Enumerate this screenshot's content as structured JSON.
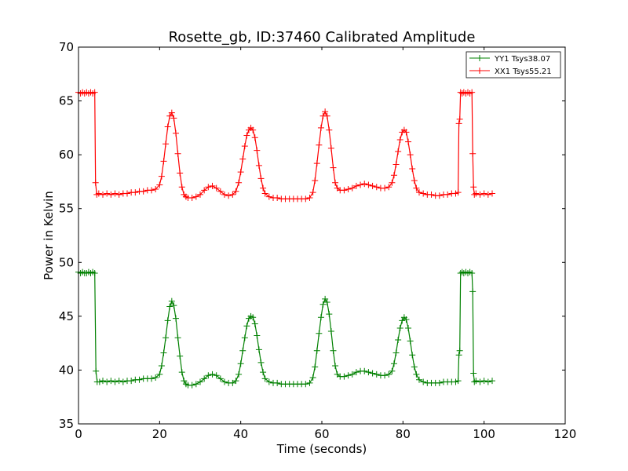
{
  "chart_data": {
    "type": "line",
    "title": "Rosette_gb, ID:37460 Calibrated Amplitude",
    "xlabel": "Time (seconds)",
    "ylabel": "Power in Kelvin",
    "xlim": [
      0,
      120
    ],
    "ylim": [
      35,
      70
    ],
    "xticks": [
      0,
      20,
      40,
      60,
      80,
      100,
      120
    ],
    "yticks": [
      35,
      40,
      45,
      50,
      55,
      60,
      65,
      70
    ],
    "grid": false,
    "legend_position": "top-right",
    "marker": "plus",
    "series": [
      {
        "name": "YY1 Tsys38.07",
        "color": "#008000",
        "points": [
          [
            0.0,
            49.1
          ],
          [
            0.5,
            49.0
          ],
          [
            1.0,
            49.1
          ],
          [
            1.5,
            49.0
          ],
          [
            2.0,
            49.0
          ],
          [
            2.5,
            49.1
          ],
          [
            3.0,
            49.0
          ],
          [
            3.5,
            49.1
          ],
          [
            4.0,
            49.0
          ],
          [
            4.3,
            39.9
          ],
          [
            4.6,
            38.9
          ],
          [
            5.2,
            38.9
          ],
          [
            6.0,
            39.0
          ],
          [
            7.0,
            38.9
          ],
          [
            8.0,
            39.0
          ],
          [
            9.0,
            38.9
          ],
          [
            10.0,
            39.0
          ],
          [
            11.0,
            38.9
          ],
          [
            12.0,
            39.0
          ],
          [
            13.0,
            39.0
          ],
          [
            14.0,
            39.1
          ],
          [
            15.0,
            39.1
          ],
          [
            16.0,
            39.2
          ],
          [
            17.0,
            39.2
          ],
          [
            18.0,
            39.2
          ],
          [
            19.0,
            39.3
          ],
          [
            20.0,
            39.6
          ],
          [
            20.5,
            40.4
          ],
          [
            21.0,
            41.6
          ],
          [
            21.5,
            43.0
          ],
          [
            22.0,
            44.6
          ],
          [
            22.5,
            45.9
          ],
          [
            23.0,
            46.4
          ],
          [
            23.5,
            46.0
          ],
          [
            24.0,
            44.8
          ],
          [
            24.5,
            43.0
          ],
          [
            25.0,
            41.3
          ],
          [
            25.5,
            39.8
          ],
          [
            26.0,
            39.0
          ],
          [
            26.5,
            38.7
          ],
          [
            27.0,
            38.6
          ],
          [
            28.0,
            38.6
          ],
          [
            29.0,
            38.7
          ],
          [
            30.0,
            38.9
          ],
          [
            31.0,
            39.2
          ],
          [
            32.0,
            39.5
          ],
          [
            33.0,
            39.6
          ],
          [
            34.0,
            39.5
          ],
          [
            35.0,
            39.2
          ],
          [
            36.0,
            38.9
          ],
          [
            37.0,
            38.8
          ],
          [
            38.0,
            38.8
          ],
          [
            38.8,
            39.0
          ],
          [
            39.5,
            39.6
          ],
          [
            40.0,
            40.6
          ],
          [
            40.5,
            41.8
          ],
          [
            41.0,
            43.0
          ],
          [
            41.5,
            44.1
          ],
          [
            42.0,
            44.8
          ],
          [
            42.5,
            45.0
          ],
          [
            43.0,
            44.9
          ],
          [
            43.5,
            44.3
          ],
          [
            44.0,
            43.2
          ],
          [
            44.5,
            41.9
          ],
          [
            45.0,
            40.7
          ],
          [
            45.5,
            39.8
          ],
          [
            46.0,
            39.2
          ],
          [
            47.0,
            38.9
          ],
          [
            48.0,
            38.8
          ],
          [
            49.0,
            38.8
          ],
          [
            50.0,
            38.7
          ],
          [
            51.0,
            38.7
          ],
          [
            52.0,
            38.7
          ],
          [
            53.0,
            38.7
          ],
          [
            54.0,
            38.7
          ],
          [
            55.0,
            38.7
          ],
          [
            56.0,
            38.7
          ],
          [
            57.0,
            38.8
          ],
          [
            57.8,
            39.3
          ],
          [
            58.3,
            40.3
          ],
          [
            58.8,
            41.8
          ],
          [
            59.3,
            43.4
          ],
          [
            59.8,
            44.9
          ],
          [
            60.3,
            46.1
          ],
          [
            60.8,
            46.6
          ],
          [
            61.3,
            46.3
          ],
          [
            61.8,
            45.2
          ],
          [
            62.3,
            43.6
          ],
          [
            62.8,
            41.8
          ],
          [
            63.3,
            40.4
          ],
          [
            63.8,
            39.6
          ],
          [
            64.5,
            39.4
          ],
          [
            65.5,
            39.4
          ],
          [
            66.5,
            39.5
          ],
          [
            67.5,
            39.6
          ],
          [
            68.5,
            39.8
          ],
          [
            69.5,
            39.9
          ],
          [
            70.5,
            39.9
          ],
          [
            71.5,
            39.8
          ],
          [
            72.5,
            39.7
          ],
          [
            73.5,
            39.6
          ],
          [
            74.5,
            39.5
          ],
          [
            75.5,
            39.5
          ],
          [
            76.5,
            39.6
          ],
          [
            77.3,
            39.9
          ],
          [
            77.8,
            40.6
          ],
          [
            78.3,
            41.6
          ],
          [
            78.8,
            42.8
          ],
          [
            79.3,
            43.9
          ],
          [
            79.8,
            44.6
          ],
          [
            80.3,
            44.9
          ],
          [
            80.8,
            44.7
          ],
          [
            81.3,
            43.9
          ],
          [
            81.8,
            42.7
          ],
          [
            82.3,
            41.4
          ],
          [
            82.8,
            40.3
          ],
          [
            83.3,
            39.6
          ],
          [
            84.0,
            39.1
          ],
          [
            85.0,
            38.9
          ],
          [
            86.0,
            38.8
          ],
          [
            87.0,
            38.8
          ],
          [
            88.0,
            38.8
          ],
          [
            89.0,
            38.8
          ],
          [
            90.0,
            38.9
          ],
          [
            91.0,
            38.9
          ],
          [
            92.0,
            38.9
          ],
          [
            93.0,
            38.9
          ],
          [
            93.6,
            39.0
          ],
          [
            93.8,
            41.4
          ],
          [
            94.0,
            41.8
          ],
          [
            94.2,
            49.0
          ],
          [
            94.6,
            49.1
          ],
          [
            95.0,
            49.0
          ],
          [
            95.5,
            49.1
          ],
          [
            96.0,
            49.0
          ],
          [
            96.5,
            49.1
          ],
          [
            97.0,
            49.0
          ],
          [
            97.2,
            47.3
          ],
          [
            97.4,
            39.7
          ],
          [
            97.6,
            38.9
          ],
          [
            98.0,
            39.0
          ],
          [
            99.0,
            38.9
          ],
          [
            100.0,
            39.0
          ],
          [
            101.0,
            38.9
          ],
          [
            102.0,
            39.0
          ]
        ]
      },
      {
        "name": "XX1 Tsys55.21",
        "color": "#ff0000",
        "points": [
          [
            0.0,
            65.8
          ],
          [
            0.5,
            65.7
          ],
          [
            1.0,
            65.8
          ],
          [
            1.5,
            65.7
          ],
          [
            2.0,
            65.8
          ],
          [
            2.5,
            65.7
          ],
          [
            3.0,
            65.8
          ],
          [
            3.5,
            65.7
          ],
          [
            4.0,
            65.8
          ],
          [
            4.2,
            57.4
          ],
          [
            4.5,
            56.3
          ],
          [
            5.0,
            56.4
          ],
          [
            6.0,
            56.3
          ],
          [
            7.0,
            56.4
          ],
          [
            8.0,
            56.3
          ],
          [
            9.0,
            56.4
          ],
          [
            10.0,
            56.3
          ],
          [
            11.0,
            56.4
          ],
          [
            12.0,
            56.4
          ],
          [
            13.0,
            56.5
          ],
          [
            14.0,
            56.5
          ],
          [
            15.0,
            56.6
          ],
          [
            16.0,
            56.6
          ],
          [
            17.0,
            56.7
          ],
          [
            18.0,
            56.7
          ],
          [
            19.0,
            56.8
          ],
          [
            20.0,
            57.2
          ],
          [
            20.5,
            58.0
          ],
          [
            21.0,
            59.4
          ],
          [
            21.5,
            61.0
          ],
          [
            22.0,
            62.6
          ],
          [
            22.5,
            63.6
          ],
          [
            23.0,
            63.9
          ],
          [
            23.5,
            63.4
          ],
          [
            24.0,
            62.0
          ],
          [
            24.5,
            60.1
          ],
          [
            25.0,
            58.3
          ],
          [
            25.5,
            57.0
          ],
          [
            26.0,
            56.3
          ],
          [
            26.5,
            56.1
          ],
          [
            27.0,
            56.0
          ],
          [
            28.0,
            56.0
          ],
          [
            29.0,
            56.1
          ],
          [
            30.0,
            56.3
          ],
          [
            31.0,
            56.7
          ],
          [
            32.0,
            57.0
          ],
          [
            33.0,
            57.1
          ],
          [
            34.0,
            56.9
          ],
          [
            35.0,
            56.6
          ],
          [
            36.0,
            56.3
          ],
          [
            37.0,
            56.2
          ],
          [
            38.0,
            56.3
          ],
          [
            38.8,
            56.6
          ],
          [
            39.5,
            57.4
          ],
          [
            40.0,
            58.4
          ],
          [
            40.5,
            59.6
          ],
          [
            41.0,
            60.8
          ],
          [
            41.5,
            61.8
          ],
          [
            42.0,
            62.3
          ],
          [
            42.5,
            62.5
          ],
          [
            43.0,
            62.3
          ],
          [
            43.5,
            61.6
          ],
          [
            44.0,
            60.4
          ],
          [
            44.5,
            59.0
          ],
          [
            45.0,
            57.8
          ],
          [
            45.5,
            56.9
          ],
          [
            46.0,
            56.4
          ],
          [
            47.0,
            56.1
          ],
          [
            48.0,
            56.0
          ],
          [
            49.0,
            56.0
          ],
          [
            50.0,
            55.9
          ],
          [
            51.0,
            55.9
          ],
          [
            52.0,
            55.9
          ],
          [
            53.0,
            55.9
          ],
          [
            54.0,
            55.9
          ],
          [
            55.0,
            55.9
          ],
          [
            56.0,
            55.9
          ],
          [
            57.0,
            56.0
          ],
          [
            57.8,
            56.5
          ],
          [
            58.3,
            57.6
          ],
          [
            58.8,
            59.2
          ],
          [
            59.3,
            60.9
          ],
          [
            59.8,
            62.5
          ],
          [
            60.3,
            63.6
          ],
          [
            60.8,
            64.0
          ],
          [
            61.3,
            63.6
          ],
          [
            61.8,
            62.3
          ],
          [
            62.3,
            60.6
          ],
          [
            62.8,
            58.8
          ],
          [
            63.3,
            57.4
          ],
          [
            63.8,
            56.9
          ],
          [
            64.5,
            56.7
          ],
          [
            65.5,
            56.7
          ],
          [
            66.5,
            56.8
          ],
          [
            67.5,
            56.9
          ],
          [
            68.5,
            57.1
          ],
          [
            69.5,
            57.2
          ],
          [
            70.5,
            57.3
          ],
          [
            71.5,
            57.2
          ],
          [
            72.5,
            57.1
          ],
          [
            73.5,
            57.0
          ],
          [
            74.5,
            56.9
          ],
          [
            75.5,
            56.9
          ],
          [
            76.5,
            57.0
          ],
          [
            77.3,
            57.4
          ],
          [
            77.8,
            58.1
          ],
          [
            78.3,
            59.1
          ],
          [
            78.8,
            60.3
          ],
          [
            79.3,
            61.4
          ],
          [
            79.8,
            62.1
          ],
          [
            80.3,
            62.3
          ],
          [
            80.8,
            62.1
          ],
          [
            81.3,
            61.2
          ],
          [
            81.8,
            60.0
          ],
          [
            82.3,
            58.7
          ],
          [
            82.8,
            57.6
          ],
          [
            83.3,
            56.9
          ],
          [
            84.0,
            56.5
          ],
          [
            85.0,
            56.4
          ],
          [
            86.0,
            56.3
          ],
          [
            87.0,
            56.3
          ],
          [
            88.0,
            56.2
          ],
          [
            89.0,
            56.2
          ],
          [
            90.0,
            56.3
          ],
          [
            91.0,
            56.3
          ],
          [
            92.0,
            56.4
          ],
          [
            93.0,
            56.4
          ],
          [
            93.6,
            56.5
          ],
          [
            93.8,
            62.9
          ],
          [
            94.0,
            63.3
          ],
          [
            94.2,
            65.8
          ],
          [
            94.6,
            65.7
          ],
          [
            95.0,
            65.8
          ],
          [
            95.5,
            65.7
          ],
          [
            96.0,
            65.8
          ],
          [
            96.5,
            65.7
          ],
          [
            97.0,
            65.8
          ],
          [
            97.2,
            60.1
          ],
          [
            97.4,
            57.0
          ],
          [
            97.6,
            56.3
          ],
          [
            98.0,
            56.4
          ],
          [
            99.0,
            56.3
          ],
          [
            100.0,
            56.4
          ],
          [
            101.0,
            56.3
          ],
          [
            102.0,
            56.4
          ]
        ]
      }
    ]
  }
}
